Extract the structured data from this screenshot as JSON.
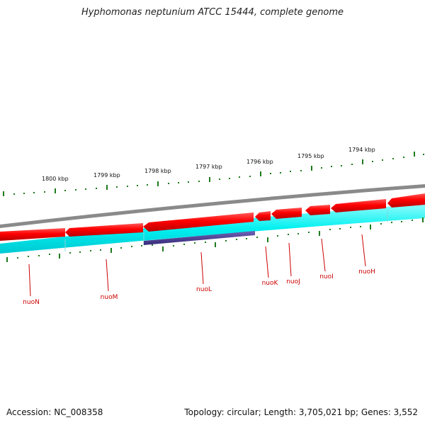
{
  "title": "Hyphomonas neptunium ATCC 15444, complete genome",
  "footer": {
    "accession": "Accession: NC_008358",
    "summary": "Topology: circular; Length: 3,705,021 bp; Genes: 3,552"
  },
  "colors": {
    "forward_cds": "#ee0000",
    "reverse_cds": "#00e5e5",
    "highlight_gene": "#4a3d8f",
    "backbone": "#888888",
    "tick": "#1e7a1e",
    "gene_label": "#cc0000"
  },
  "kbp_labels": [
    "1800 kbp",
    "1799 kbp",
    "1798 kbp",
    "1797 kbp",
    "1796 kbp",
    "1795 kbp",
    "1794 kbp"
  ],
  "genes": [
    {
      "name": "nuoN"
    },
    {
      "name": "nuoM"
    },
    {
      "name": "nuoL"
    },
    {
      "name": "nuoK"
    },
    {
      "name": "nuoJ"
    },
    {
      "name": "nuoI"
    },
    {
      "name": "nuoH"
    }
  ]
}
